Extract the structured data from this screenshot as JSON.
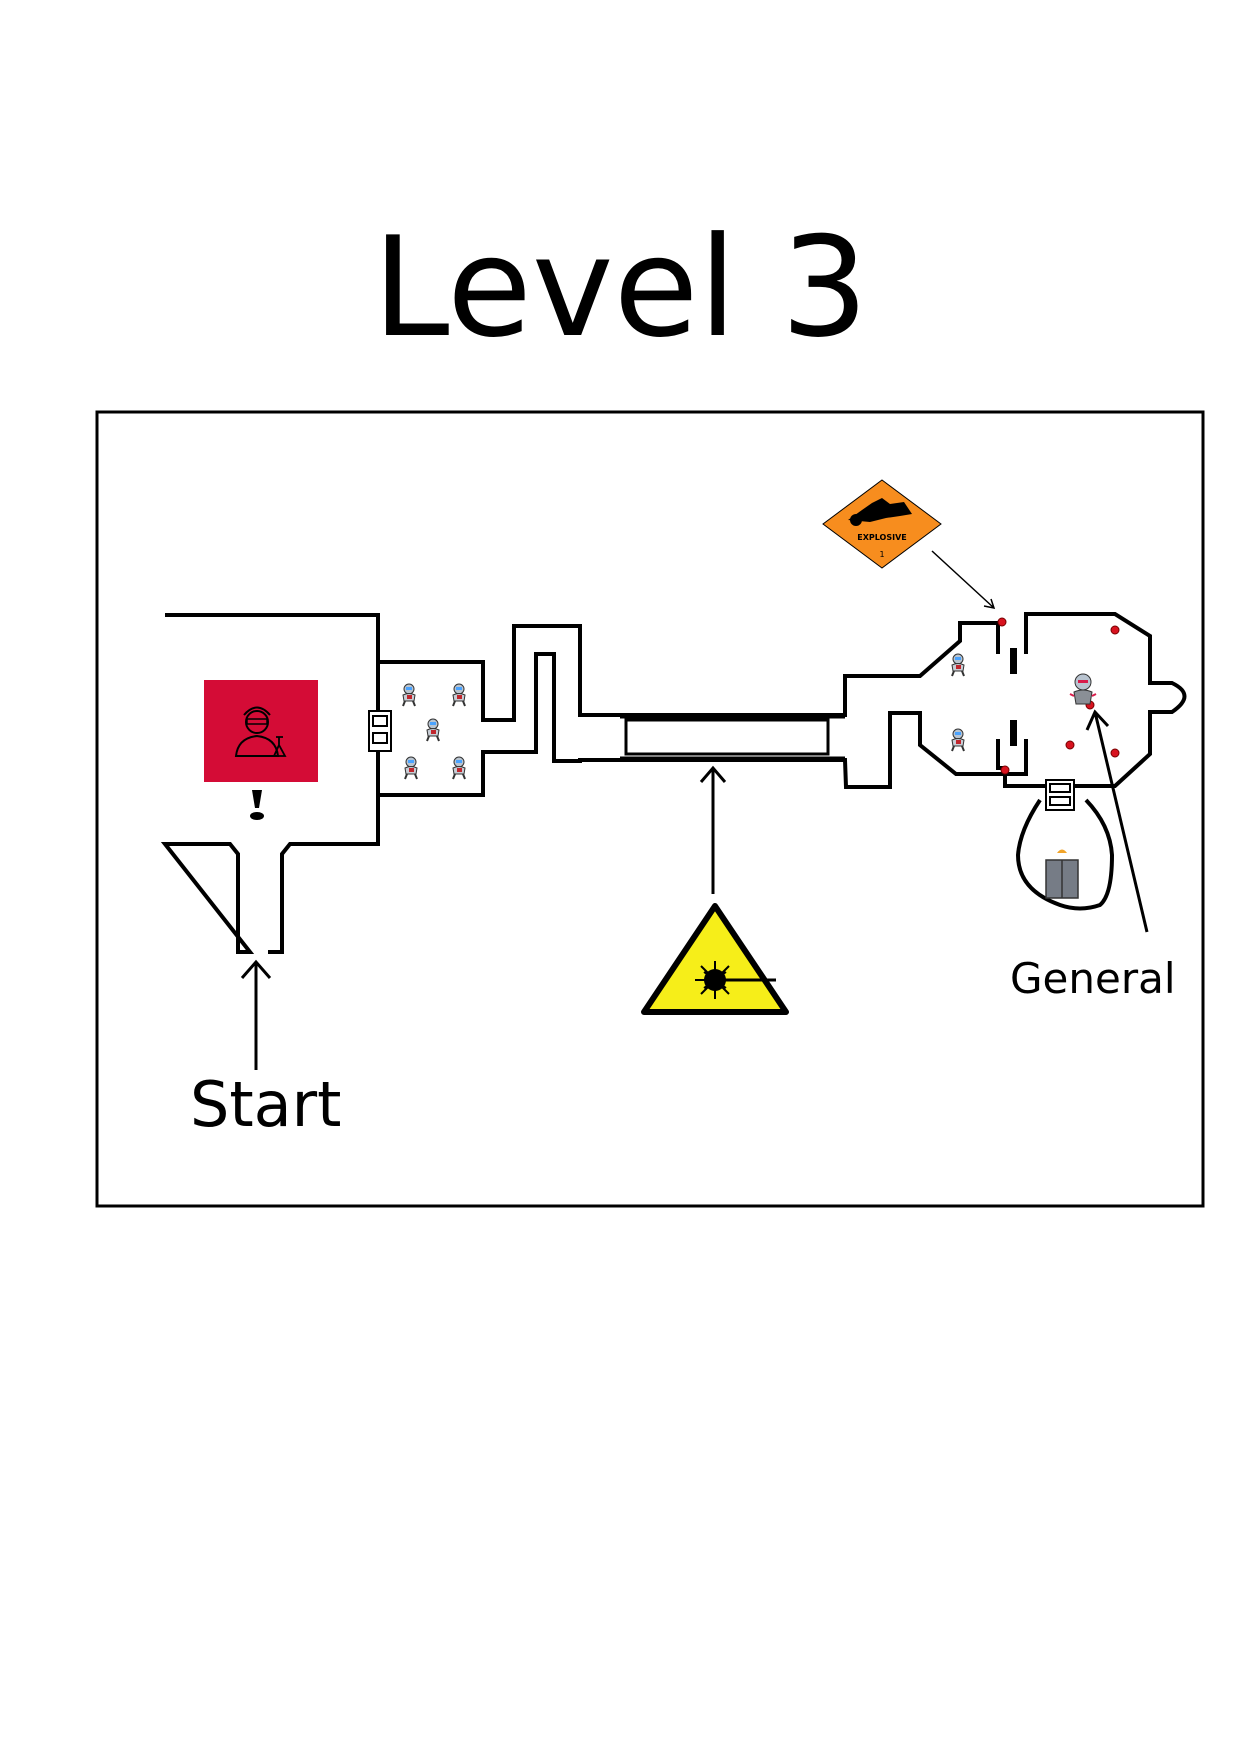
{
  "page": {
    "title": "Level 3"
  },
  "map": {
    "labels": {
      "start": "Start",
      "general": "General"
    },
    "hazard_sign": {
      "text": "EXPLOSIVE",
      "class_number": "1"
    },
    "icons": [
      "scientist-icon",
      "alert-exclamation-icon",
      "guard-robot-icon",
      "security-door-icon",
      "laser-warning-icon",
      "explosive-sign-icon",
      "general-boss-icon",
      "elevator-icon",
      "explosive-charge-icon"
    ],
    "counts": {
      "guard_robots": 7,
      "explosive_charges": 6
    },
    "colors": {
      "scientist_room": "#d40c36",
      "laser_sign": "#f6ee19",
      "explosive_sign": "#f78d1e",
      "charge": "#d8121f",
      "walls": "#000000"
    }
  }
}
